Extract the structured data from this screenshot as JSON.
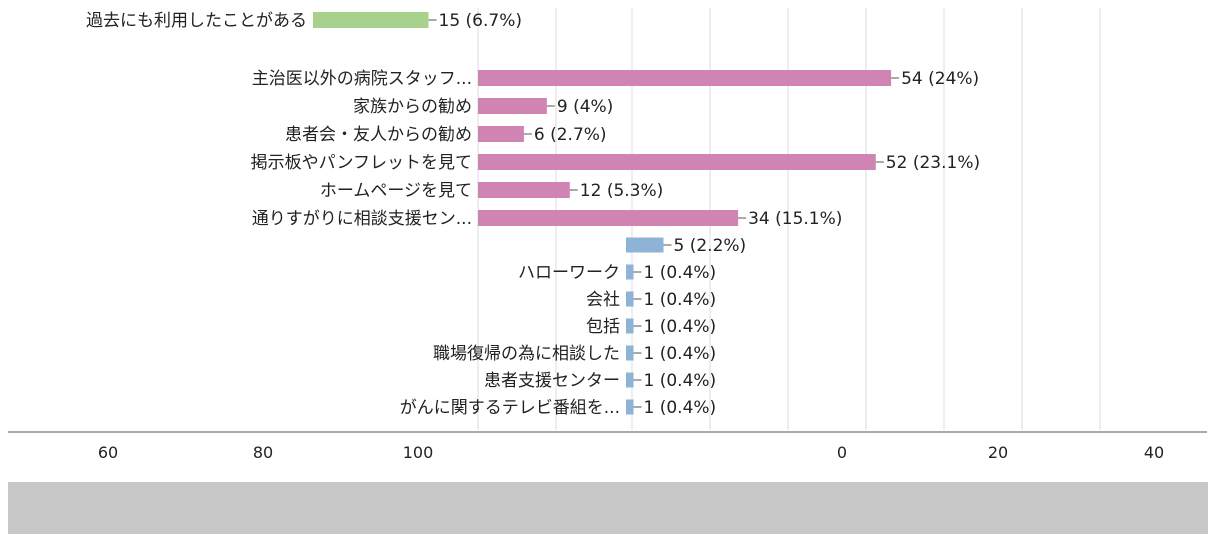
{
  "chart_data": {
    "type": "bar",
    "orientation": "horizontal",
    "grid": true,
    "legend": "none",
    "colors": {
      "green": "#a9d18e",
      "pink": "#d084b4",
      "blue": "#8db3d6",
      "grid": "#dddddd",
      "text": "#222222"
    },
    "panels": [
      {
        "name": "top",
        "bars": [
          {
            "label": "過去にも利用したことがある",
            "value": 15,
            "data_label": "15 (6.7%)",
            "color": "green"
          }
        ]
      },
      {
        "name": "main",
        "bars": [
          {
            "label": "主治医以外の病院スタッフ...",
            "value": 54,
            "data_label": "54 (24%)",
            "color": "pink"
          },
          {
            "label": "家族からの勧め",
            "value": 9,
            "data_label": "9 (4%)",
            "color": "pink"
          },
          {
            "label": "患者会・友人からの勧め",
            "value": 6,
            "data_label": "6 (2.7%)",
            "color": "pink"
          },
          {
            "label": "掲示板やパンフレットを見て",
            "value": 52,
            "data_label": "52 (23.1%)",
            "color": "pink"
          },
          {
            "label": "ホームページを見て",
            "value": 12,
            "data_label": "12 (5.3%)",
            "color": "pink"
          },
          {
            "label": "通りすがりに相談支援セン...",
            "value": 34,
            "data_label": "34 (15.1%)",
            "color": "pink"
          }
        ]
      },
      {
        "name": "lower",
        "bars": [
          {
            "label": "",
            "value": 5,
            "data_label": "5 (2.2%)",
            "color": "blue"
          },
          {
            "label": "ハローワーク",
            "value": 1,
            "data_label": "1 (0.4%)",
            "color": "blue"
          },
          {
            "label": "会社",
            "value": 1,
            "data_label": "1 (0.4%)",
            "color": "blue"
          },
          {
            "label": "包括",
            "value": 1,
            "data_label": "1 (0.4%)",
            "color": "blue"
          },
          {
            "label": "職場復帰の為に相談した",
            "value": 1,
            "data_label": "1 (0.4%)",
            "color": "blue"
          },
          {
            "label": "患者支援センター",
            "value": 1,
            "data_label": "1 (0.4%)",
            "color": "blue"
          },
          {
            "label": "がんに関するテレビ番組を...",
            "value": 1,
            "data_label": "1 (0.4%)",
            "color": "blue"
          }
        ]
      }
    ],
    "axis_left": {
      "ticks": [
        60,
        80,
        100
      ]
    },
    "axis_right": {
      "ticks": [
        0,
        20,
        40
      ]
    }
  }
}
